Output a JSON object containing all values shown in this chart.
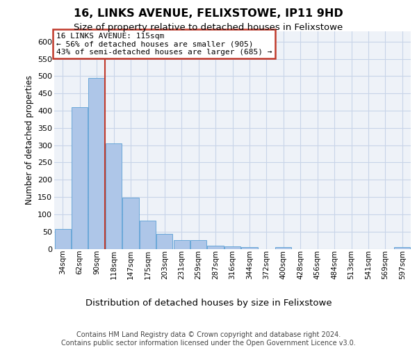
{
  "title1": "16, LINKS AVENUE, FELIXSTOWE, IP11 9HD",
  "title2": "Size of property relative to detached houses in Felixstowe",
  "xlabel": "Distribution of detached houses by size in Felixstowe",
  "ylabel": "Number of detached properties",
  "categories": [
    "34sqm",
    "62sqm",
    "90sqm",
    "118sqm",
    "147sqm",
    "175sqm",
    "203sqm",
    "231sqm",
    "259sqm",
    "287sqm",
    "316sqm",
    "344sqm",
    "372sqm",
    "400sqm",
    "428sqm",
    "456sqm",
    "484sqm",
    "513sqm",
    "541sqm",
    "569sqm",
    "597sqm"
  ],
  "values": [
    58,
    410,
    494,
    305,
    149,
    82,
    44,
    25,
    25,
    10,
    8,
    5,
    0,
    5,
    0,
    0,
    0,
    0,
    0,
    0,
    5
  ],
  "bar_color": "#aec6e8",
  "bar_edge_color": "#5a9fd4",
  "vline_color": "#c0392b",
  "vline_x": 2.5,
  "annotation_text": "16 LINKS AVENUE: 115sqm\n← 56% of detached houses are smaller (905)\n43% of semi-detached houses are larger (685) →",
  "annotation_box_edgecolor": "#c0392b",
  "ylim_max": 630,
  "yticks": [
    0,
    50,
    100,
    150,
    200,
    250,
    300,
    350,
    400,
    450,
    500,
    550,
    600
  ],
  "grid_color": "#c8d4e8",
  "bg_color": "#eef2f8",
  "footer1": "Contains HM Land Registry data © Crown copyright and database right 2024.",
  "footer2": "Contains public sector information licensed under the Open Government Licence v3.0."
}
